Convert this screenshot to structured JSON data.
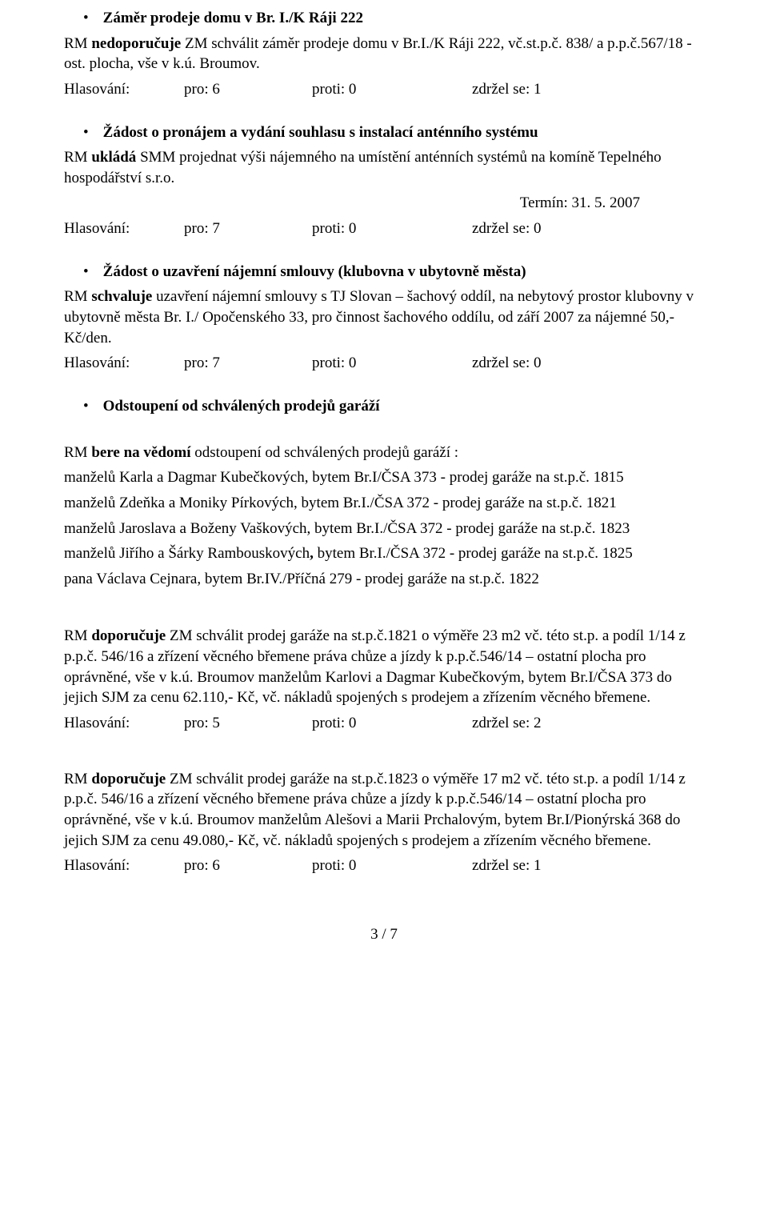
{
  "sections": {
    "s1": {
      "title": "Záměr prodeje domu v Br. I./K Ráji 222",
      "body_a": "RM ",
      "body_b": "nedoporučuje",
      "body_c": " ZM schválit záměr prodeje domu v Br.I./K Ráji 222, vč.st.p.č. 838/ a p.p.č.567/18 - ost. plocha, vše v k.ú. Broumov.",
      "vote": {
        "lbl": "Hlasování:",
        "pro": "pro: 6",
        "proti": "proti: 0",
        "zdr": "zdržel se: 1"
      }
    },
    "s2": {
      "title": "Žádost o pronájem a vydání souhlasu s instalací anténního systému",
      "body_a": "RM  ",
      "body_b": "ukládá",
      "body_c": " SMM projednat výši nájemného na umístění anténních systémů na komíně Tepelného hospodářství s.r.o.",
      "term": "Termín: 31. 5. 2007",
      "vote": {
        "lbl": "Hlasování:",
        "pro": "pro: 7",
        "proti": "proti: 0",
        "zdr": "zdržel se: 0"
      }
    },
    "s3": {
      "title": "Žádost o uzavření nájemní smlouvy (klubovna v ubytovně města)",
      "body_a": "RM ",
      "body_b": "schvaluje",
      "body_c": " uzavření  nájemní smlouvy s TJ Slovan – šachový oddíl, na nebytový prostor klubovny v ubytovně města Br. I./ Opočenského 33, pro činnost šachového oddílu, od září 2007 za nájemné 50,- Kč/den.",
      "vote": {
        "lbl": "Hlasování:",
        "pro": "pro: 7",
        "proti": "proti: 0",
        "zdr": "zdržel se: 0"
      }
    },
    "s4": {
      "title": "Odstoupení od schválených prodejů garáží",
      "intro_a": "RM ",
      "intro_b": "bere na vědomí",
      "intro_c": " odstoupení od schválených prodejů garáží :",
      "lines": [
        "manželů Karla a  Dagmar Kubečkových, bytem Br.I/ČSA 373 - prodej garáže na st.p.č. 1815",
        "manželů Zdeňka a Moniky Pírkových, bytem Br.I./ČSA 372 - prodej garáže na st.p.č. 1821",
        "manželů Jaroslava a Boženy Vaškových, bytem Br.I./ČSA 372 - prodej garáže na st.p.č. 1823",
        "",
        "pana Václava Cejnara, bytem Br.IV./Příčná 279 - prodej garáže na st.p.č. 1822"
      ],
      "line4_a": "manželů Jiřího a Šárky Rambouskových",
      "line4_b": ", ",
      "line4_c": "bytem Br.I./ČSA 372 - prodej garáže na st.p.č. 1825"
    },
    "s5": {
      "body_a": "RM ",
      "body_b": "doporučuje",
      "body_c": " ZM schválit prodej garáže na st.p.č.1821 o výměře 23 m2 vč. této st.p. a podíl 1/14 z p.p.č. 546/16 a zřízení věcného břemene práva chůze a jízdy k p.p.č.546/14 – ostatní plocha pro oprávněné, vše v k.ú. Broumov manželům Karlovi a  Dagmar Kubečkovým, bytem Br.I/ČSA 373 do jejich SJM za cenu 62.110,- Kč, vč. nákladů spojených s prodejem a zřízením věcného břemene.",
      "vote": {
        "lbl": "Hlasování:",
        "pro": "pro: 5",
        "proti": "proti: 0",
        "zdr": "zdržel se: 2"
      }
    },
    "s6": {
      "body_a": "RM ",
      "body_b": "doporučuje",
      "body_c": " ZM schválit prodej garáže na st.p.č.1823 o výměře 17 m2 vč. této st.p. a podíl 1/14 z p.p.č. 546/16 a zřízení věcného břemene práva chůze a jízdy k p.p.č.546/14 – ostatní plocha pro oprávněné, vše v k.ú. Broumov manželům Alešovi a  Marii Prchalovým, bytem Br.I/Pionýrská 368 do jejich SJM za cenu 49.080,- Kč, vč. nákladů spojených s prodejem a zřízením věcného břemene.",
      "vote": {
        "lbl": "Hlasování:",
        "pro": "pro: 6",
        "proti": "proti: 0",
        "zdr": "zdržel se: 1"
      }
    }
  },
  "footer": "3 / 7"
}
